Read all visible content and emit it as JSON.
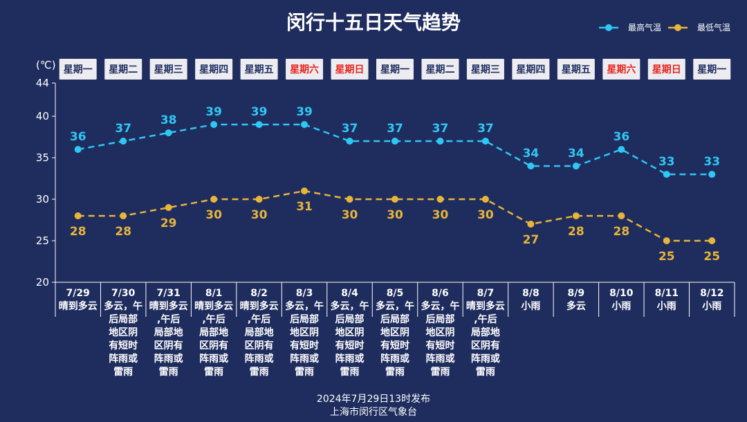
{
  "chart_data": {
    "type": "line",
    "title": "闵行十五日天气趋势",
    "unit_label": "(℃)",
    "ylim": [
      20,
      44
    ],
    "yticks": [
      20,
      25,
      30,
      35,
      40,
      44
    ],
    "grid": false,
    "legend_position": "top-right",
    "x": [
      "7/29",
      "7/30",
      "7/31",
      "8/1",
      "8/2",
      "8/3",
      "8/4",
      "8/5",
      "8/6",
      "8/7",
      "8/8",
      "8/9",
      "8/10",
      "8/11",
      "8/12"
    ],
    "weekdays": [
      "星期一",
      "星期二",
      "星期三",
      "星期四",
      "星期五",
      "星期六",
      "星期日",
      "星期一",
      "星期二",
      "星期三",
      "星期四",
      "星期五",
      "星期六",
      "星期日",
      "星期一"
    ],
    "weekend_flags": [
      false,
      false,
      false,
      false,
      false,
      true,
      true,
      false,
      false,
      false,
      false,
      false,
      true,
      true,
      false
    ],
    "weather": [
      [
        "晴到多云"
      ],
      [
        "多云，午",
        "后局部",
        "地区阴",
        "有短时",
        "阵雨或",
        "雷雨"
      ],
      [
        "晴到多云",
        ",午后",
        "局部地",
        "区阴有",
        "阵雨或",
        "雷雨"
      ],
      [
        "晴到多云",
        ",午后",
        "局部地",
        "区阴有",
        "阵雨或",
        "雷雨"
      ],
      [
        "晴到多云",
        ",午后",
        "局部地",
        "区阴有",
        "阵雨或",
        "雷雨"
      ],
      [
        "多云，午",
        "后局部",
        "地区阴",
        "有短时",
        "阵雨或",
        "雷雨"
      ],
      [
        "多云，午",
        "后局部",
        "地区阴",
        "有短时",
        "阵雨或",
        "雷雨"
      ],
      [
        "多云，午",
        "后局部",
        "地区阴",
        "有短时",
        "阵雨或",
        "雷雨"
      ],
      [
        "多云，午",
        "后局部",
        "地区阴",
        "有短时",
        "阵雨或",
        "雷雨"
      ],
      [
        "晴到多云",
        ",午后",
        "局部地",
        "区阴有",
        "阵雨或",
        "雷雨"
      ],
      [
        "小雨"
      ],
      [
        "多云"
      ],
      [
        "小雨"
      ],
      [
        "小雨"
      ],
      [
        "小雨"
      ]
    ],
    "series": [
      {
        "name": "最高气温",
        "values": [
          36,
          37,
          38,
          39,
          39,
          39,
          37,
          37,
          37,
          37,
          34,
          34,
          36,
          33,
          33
        ]
      },
      {
        "name": "最低气温",
        "values": [
          28,
          28,
          29,
          30,
          30,
          31,
          30,
          30,
          30,
          30,
          27,
          28,
          28,
          25,
          25
        ]
      }
    ],
    "colors": {
      "high": "#2ec8f5",
      "low": "#e8b53a",
      "weekend": "#e8261f",
      "weekday": "#1f2d5e",
      "background": "#1f2d5e"
    }
  },
  "footer": {
    "line1": "2024年7月29日13时发布",
    "line2": "上海市闵行区气象台"
  }
}
